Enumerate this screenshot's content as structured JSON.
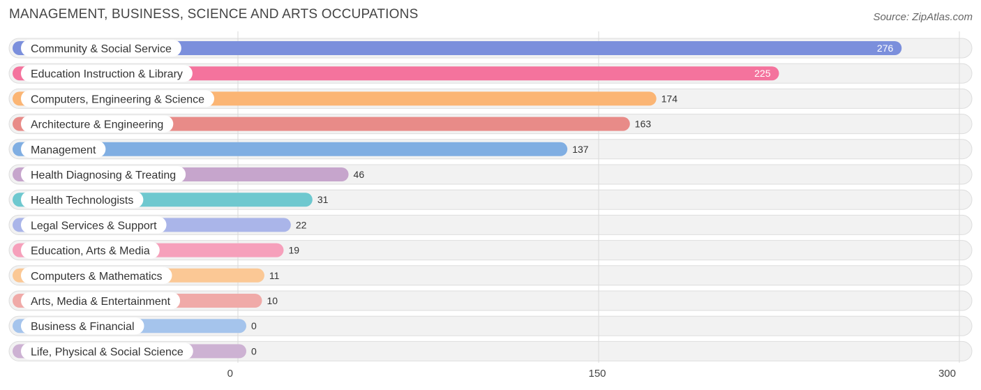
{
  "header": {
    "title": "MANAGEMENT, BUSINESS, SCIENCE AND ARTS OCCUPATIONS",
    "source": "Source: ZipAtlas.com"
  },
  "chart_data": {
    "type": "bar",
    "orientation": "horizontal",
    "title": "MANAGEMENT, BUSINESS, SCIENCE AND ARTS OCCUPATIONS",
    "xlabel": "",
    "ylabel": "",
    "xlim": [
      0,
      300
    ],
    "ticks": [
      0,
      150,
      300
    ],
    "grid": true,
    "categories": [
      "Community & Social Service",
      "Education Instruction & Library",
      "Computers, Engineering & Science",
      "Architecture & Engineering",
      "Management",
      "Health Diagnosing & Treating",
      "Health Technologists",
      "Legal Services & Support",
      "Education, Arts & Media",
      "Computers & Mathematics",
      "Arts, Media & Entertainment",
      "Business & Financial",
      "Life, Physical & Social Science"
    ],
    "values": [
      276,
      225,
      174,
      163,
      137,
      46,
      31,
      22,
      19,
      11,
      10,
      0,
      0
    ],
    "colors": [
      "#7b8fdc",
      "#f4739d",
      "#fbb574",
      "#e88b88",
      "#80aee2",
      "#c6a5cc",
      "#6ec8cf",
      "#aab5e9",
      "#f6a0bb",
      "#fbc895",
      "#f0aaa8",
      "#a5c4ec",
      "#cdb2d3"
    ]
  }
}
